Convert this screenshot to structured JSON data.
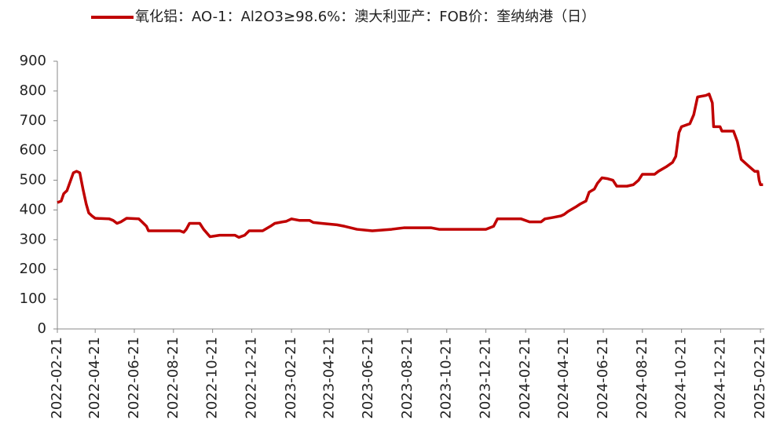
{
  "chart_data": {
    "type": "line",
    "x": [
      "2022-02-21",
      "2022-02-27",
      "2022-03-03",
      "2022-03-08",
      "2022-03-13",
      "2022-03-18",
      "2022-03-23",
      "2022-03-28",
      "2022-04-02",
      "2022-04-07",
      "2022-04-11",
      "2022-04-16",
      "2022-04-21",
      "2022-05-13",
      "2022-05-19",
      "2022-05-25",
      "2022-05-31",
      "2022-06-09",
      "2022-06-28",
      "2022-07-03",
      "2022-07-10",
      "2022-07-13",
      "2022-08-31",
      "2022-09-06",
      "2022-09-10",
      "2022-09-15",
      "2022-10-01",
      "2022-10-07",
      "2022-10-17",
      "2022-11-01",
      "2022-11-25",
      "2022-12-01",
      "2022-12-10",
      "2022-12-17",
      "2023-01-07",
      "2023-01-19",
      "2023-01-26",
      "2023-02-07",
      "2023-02-13",
      "2023-02-21",
      "2023-03-05",
      "2023-03-21",
      "2023-03-27",
      "2023-04-09",
      "2023-05-03",
      "2023-05-15",
      "2023-06-03",
      "2023-06-27",
      "2023-07-27",
      "2023-08-15",
      "2023-09-27",
      "2023-10-09",
      "2023-12-21",
      "2024-01-02",
      "2024-01-08",
      "2024-02-14",
      "2024-02-27",
      "2024-03-16",
      "2024-03-22",
      "2024-04-04",
      "2024-04-16",
      "2024-04-21",
      "2024-04-27",
      "2024-05-09",
      "2024-05-16",
      "2024-05-25",
      "2024-05-30",
      "2024-06-07",
      "2024-06-12",
      "2024-06-19",
      "2024-06-28",
      "2024-07-06",
      "2024-07-12",
      "2024-07-28",
      "2024-08-07",
      "2024-08-15",
      "2024-08-21",
      "2024-09-09",
      "2024-09-15",
      "2024-09-27",
      "2024-10-07",
      "2024-10-12",
      "2024-10-17",
      "2024-10-21",
      "2024-11-03",
      "2024-11-09",
      "2024-11-15",
      "2024-11-28",
      "2024-12-03",
      "2024-12-08",
      "2024-12-10",
      "2024-12-20",
      "2024-12-23",
      "2025-01-10",
      "2025-01-16",
      "2025-01-22",
      "2025-02-04",
      "2025-02-12",
      "2025-02-17",
      "2025-02-19",
      "2025-02-21",
      "2025-02-25"
    ],
    "series": [
      {
        "name": "氧化铝：AO-1：Al2O3≥98.6%：澳大利亚产：FOB价：奎纳纳港（日）",
        "color": "#c00000",
        "values": [
          425,
          430,
          455,
          465,
          495,
          525,
          530,
          525,
          470,
          420,
          390,
          380,
          372,
          370,
          365,
          355,
          360,
          372,
          370,
          360,
          345,
          330,
          330,
          325,
          335,
          355,
          355,
          335,
          310,
          315,
          315,
          308,
          315,
          330,
          330,
          345,
          355,
          360,
          362,
          370,
          365,
          365,
          358,
          355,
          350,
          345,
          335,
          330,
          335,
          340,
          340,
          335,
          335,
          345,
          370,
          370,
          360,
          360,
          370,
          375,
          380,
          385,
          395,
          410,
          420,
          430,
          460,
          470,
          490,
          508,
          505,
          500,
          480,
          480,
          485,
          500,
          520,
          520,
          530,
          545,
          560,
          580,
          660,
          680,
          690,
          720,
          780,
          785,
          790,
          760,
          680,
          680,
          665,
          665,
          630,
          570,
          545,
          530,
          530,
          500,
          485,
          485
        ]
      }
    ],
    "xlim": [
      "2022-02-21",
      "2025-02-27"
    ],
    "xticks": [
      "2022-02-21",
      "2022-04-21",
      "2022-06-21",
      "2022-08-21",
      "2022-10-21",
      "2022-12-21",
      "2023-02-21",
      "2023-04-21",
      "2023-06-21",
      "2023-08-21",
      "2023-10-21",
      "2023-12-21",
      "2024-02-21",
      "2024-04-21",
      "2024-06-21",
      "2024-08-21",
      "2024-10-21",
      "2024-12-21",
      "2025-02-21"
    ],
    "ylim": [
      0,
      900
    ],
    "yticks": [
      0,
      100,
      200,
      300,
      400,
      500,
      600,
      700,
      800,
      900
    ],
    "legend": "top"
  }
}
